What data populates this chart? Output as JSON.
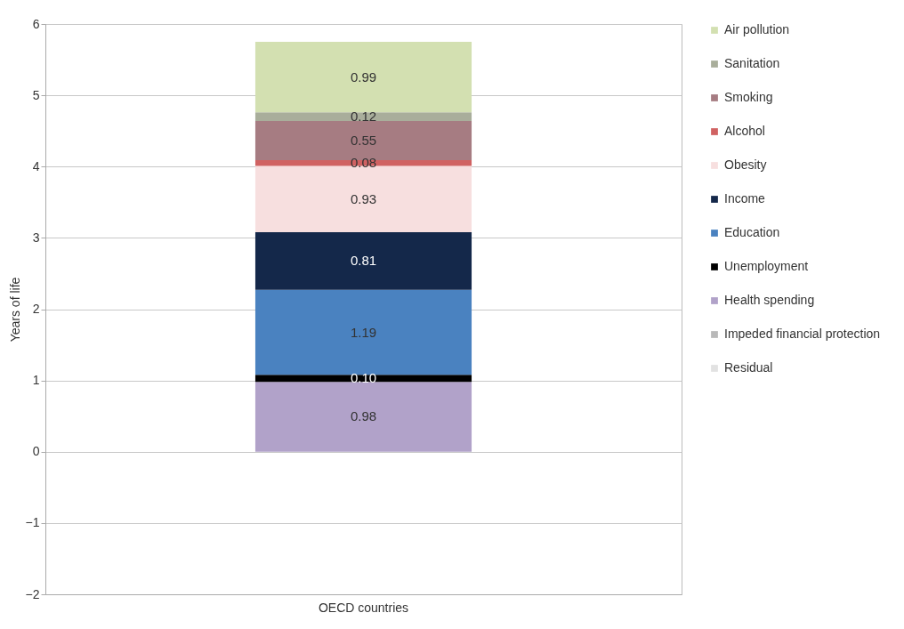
{
  "chart_data": {
    "type": "bar",
    "stacked": true,
    "ylabel": "Years of life",
    "categories": [
      "OECD countries"
    ],
    "series": [
      {
        "name": "Residual",
        "color": "#e2e2e2",
        "values": [
          null
        ]
      },
      {
        "name": "Impeded financial protection",
        "color": "#b9b9b9",
        "values": [
          null
        ]
      },
      {
        "name": "Health spending",
        "color": "#b1a2c9",
        "values": [
          0.98
        ],
        "value_labels": [
          "0.98"
        ]
      },
      {
        "name": "Unemployment",
        "color": "#000000",
        "values": [
          0.1
        ],
        "value_labels": [
          "0.10"
        ]
      },
      {
        "name": "Education",
        "color": "#4a82c0",
        "values": [
          1.19
        ],
        "value_labels": [
          "1.19"
        ]
      },
      {
        "name": "Income",
        "color": "#14284a",
        "values": [
          0.81
        ],
        "value_labels": [
          "0.81"
        ]
      },
      {
        "name": "Obesity",
        "color": "#f7dfdf",
        "values": [
          0.93
        ],
        "value_labels": [
          "0.93"
        ]
      },
      {
        "name": "Alcohol",
        "color": "#d06262",
        "values": [
          0.08
        ],
        "value_labels": [
          "0.08"
        ]
      },
      {
        "name": "Smoking",
        "color": "#a67c82",
        "values": [
          0.55
        ],
        "value_labels": [
          "0.55"
        ]
      },
      {
        "name": "Sanitation",
        "color": "#a9ae9b",
        "values": [
          0.12
        ],
        "value_labels": [
          "0.12"
        ]
      },
      {
        "name": "Air pollution",
        "color": "#d3e0b1",
        "values": [
          0.99
        ],
        "value_labels": [
          "0.99"
        ]
      }
    ],
    "ylim": [
      -2,
      6
    ],
    "yticks": [
      -2,
      -1,
      0,
      1,
      2,
      3,
      4,
      5,
      6
    ],
    "grid": "y",
    "legend": "right"
  }
}
